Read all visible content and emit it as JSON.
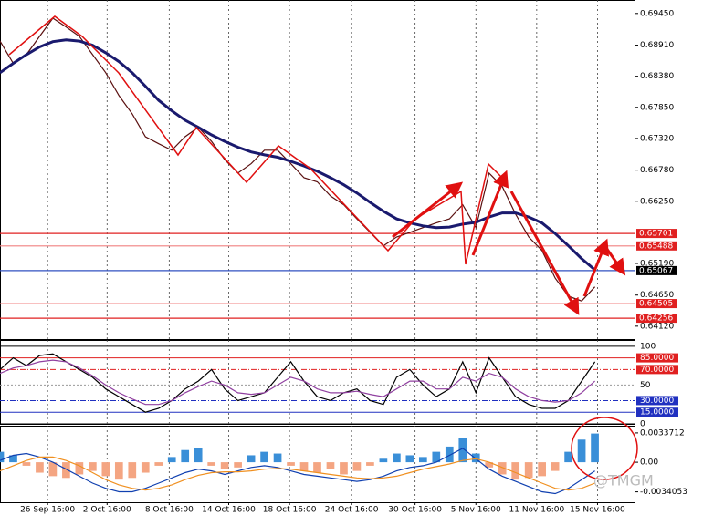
{
  "chart_data": [
    {
      "type": "line",
      "xlim": [
        0,
        48
      ],
      "ylim": [
        0.639,
        0.6968
      ],
      "yticks": [
        {
          "value": 0.6945,
          "label": "0.69450"
        },
        {
          "value": 0.6891,
          "label": "0.68910"
        },
        {
          "value": 0.6838,
          "label": "0.68380"
        },
        {
          "value": 0.6785,
          "label": "0.67850"
        },
        {
          "value": 0.6732,
          "label": "0.67320"
        },
        {
          "value": 0.6678,
          "label": "0.66780"
        },
        {
          "value": 0.6625,
          "label": "0.66250"
        },
        {
          "value": 0.6519,
          "label": "0.65190"
        },
        {
          "value": 0.6465,
          "label": "0.64650"
        },
        {
          "value": 0.6412,
          "label": "0.64120"
        }
      ],
      "levels": [
        {
          "value": 0.65701,
          "color": "#e02020",
          "box": "#e02020"
        },
        {
          "value": 0.65488,
          "color": "#f08080",
          "box": "#e02020"
        },
        {
          "value": 0.65067,
          "color": "#3050c0",
          "box": "#000000"
        },
        {
          "value": 0.64505,
          "color": "#f08080",
          "box": "#e02020"
        },
        {
          "value": 0.64256,
          "color": "#e02020",
          "box": "#e02020"
        }
      ],
      "series": [
        {
          "color": "#5a1010",
          "values": [
            0.6898,
            0.686,
            0.6875,
            0.6906,
            0.6937,
            0.6922,
            0.6906,
            0.6875,
            0.6844,
            0.6805,
            0.6774,
            0.6735,
            0.6723,
            0.6712,
            0.6735,
            0.6751,
            0.6727,
            0.6696,
            0.6673,
            0.6689,
            0.6712,
            0.6712,
            0.6689,
            0.6665,
            0.6658,
            0.6634,
            0.6619,
            0.6595,
            0.6572,
            0.6549,
            0.6564,
            0.6572,
            0.658,
            0.6588,
            0.6595,
            0.6619,
            0.658,
            0.6673,
            0.665,
            0.6603,
            0.6564,
            0.6541,
            0.6494,
            0.6463,
            0.6455,
            0.6479
          ]
        },
        {
          "color": "#1a1a6e",
          "values": [
            0.6844,
            0.686,
            0.6875,
            0.6888,
            0.6897,
            0.69,
            0.6898,
            0.6891,
            0.6878,
            0.6863,
            0.6844,
            0.6821,
            0.6797,
            0.6779,
            0.6763,
            0.6751,
            0.6738,
            0.6727,
            0.6717,
            0.6709,
            0.6704,
            0.67,
            0.6693,
            0.6685,
            0.6676,
            0.6665,
            0.6653,
            0.6639,
            0.6623,
            0.6608,
            0.6595,
            0.6588,
            0.6583,
            0.658,
            0.6581,
            0.6586,
            0.6589,
            0.6598,
            0.6605,
            0.6605,
            0.6598,
            0.6588,
            0.657,
            0.6549,
            0.6527,
            0.6508
          ]
        }
      ]
    },
    {
      "type": "line",
      "xlim": [
        0,
        48
      ],
      "ylim": [
        0,
        108
      ],
      "yticks": [
        100,
        {
          "value": 85,
          "label": "85.0000"
        },
        {
          "value": 70,
          "label": "70.0000"
        },
        50,
        {
          "value": 30,
          "label": "30.0000"
        },
        {
          "value": 15,
          "label": "15.0000"
        },
        0
      ],
      "tick_colors": [
        "#000000",
        "#e02020",
        "#e02020",
        "#999999",
        "#2030c0",
        "#2030c0",
        "#000000"
      ],
      "series": [
        {
          "color": "#000000",
          "values": [
            70,
            85,
            75,
            88,
            90,
            80,
            70,
            60,
            45,
            35,
            25,
            15,
            20,
            30,
            45,
            55,
            70,
            45,
            30,
            35,
            40,
            60,
            80,
            55,
            35,
            30,
            40,
            45,
            30,
            25,
            60,
            70,
            50,
            35,
            45,
            80,
            40,
            85,
            60,
            35,
            25,
            20,
            20,
            30,
            55,
            80
          ]
        },
        {
          "color": "#9040a0",
          "values": [
            65,
            72,
            75,
            80,
            82,
            80,
            72,
            62,
            50,
            40,
            32,
            25,
            25,
            30,
            40,
            48,
            55,
            50,
            40,
            38,
            40,
            50,
            60,
            55,
            45,
            40,
            40,
            42,
            38,
            35,
            45,
            55,
            55,
            45,
            45,
            60,
            55,
            65,
            60,
            45,
            35,
            30,
            28,
            30,
            40,
            55
          ]
        }
      ]
    },
    {
      "type": "bar",
      "xlim": [
        0,
        48
      ],
      "ylim": [
        -0.0046,
        0.0042
      ],
      "yticks": [
        0.0033712,
        {
          "value": 0,
          "label": "0.00"
        },
        -0.0034053
      ],
      "xticks": [
        {
          "value": 3.6,
          "label": "26 Sep 16:00"
        },
        {
          "value": 8.1,
          "label": "2 Oct 16:00"
        },
        {
          "value": 12.8,
          "label": "8 Oct 16:00"
        },
        {
          "value": 17.3,
          "label": "14 Oct 16:00"
        },
        {
          "value": 21.9,
          "label": "18 Oct 16:00"
        },
        {
          "value": 26.6,
          "label": "24 Oct 16:00"
        },
        {
          "value": 31.4,
          "label": "30 Oct 16:00"
        },
        {
          "value": 36.0,
          "label": "5 Nov 16:00"
        },
        {
          "value": 40.6,
          "label": "11 Nov 16:00"
        },
        {
          "value": 45.2,
          "label": "15 Nov 16:00"
        }
      ],
      "up_color": "#3a8fd8",
      "down_color": "#f4a582",
      "values": [
        0.0012,
        0.0008,
        -0.0004,
        -0.0012,
        -0.0016,
        -0.0018,
        -0.0014,
        -0.001,
        -0.0016,
        -0.002,
        -0.0018,
        -0.0012,
        -0.0004,
        0.0006,
        0.0014,
        0.0016,
        -0.0004,
        -0.0008,
        -0.0006,
        0.0008,
        0.0012,
        0.001,
        -0.0004,
        -0.001,
        -0.0012,
        -0.0008,
        -0.0014,
        -0.001,
        -0.0004,
        0.0004,
        0.001,
        0.0008,
        0.0006,
        0.0012,
        0.0018,
        0.0028,
        0.001,
        -0.0006,
        -0.0014,
        -0.002,
        -0.0018,
        -0.0016,
        -0.001,
        0.0012,
        0.0026,
        0.0033
      ],
      "series": [
        {
          "color": "#1040b0",
          "values": [
            0.0002,
            0.0008,
            0.001,
            0.0006,
            0.0,
            -0.0008,
            -0.0016,
            -0.0024,
            -0.003,
            -0.0034,
            -0.0034,
            -0.003,
            -0.0024,
            -0.0018,
            -0.0012,
            -0.0008,
            -0.001,
            -0.0014,
            -0.001,
            -0.0006,
            -0.0004,
            -0.0006,
            -0.001,
            -0.0014,
            -0.0016,
            -0.0018,
            -0.002,
            -0.0022,
            -0.002,
            -0.0016,
            -0.001,
            -0.0006,
            -0.0004,
            0.0,
            0.0008,
            0.0016,
            0.0004,
            -0.0008,
            -0.0016,
            -0.0022,
            -0.0028,
            -0.0034,
            -0.0036,
            -0.003,
            -0.002,
            -0.001
          ]
        },
        {
          "color": "#f09020",
          "values": [
            -0.001,
            -0.0004,
            0.0002,
            0.0006,
            0.0006,
            0.0002,
            -0.0004,
            -0.0012,
            -0.002,
            -0.0026,
            -0.003,
            -0.0032,
            -0.003,
            -0.0026,
            -0.002,
            -0.0015,
            -0.0012,
            -0.0011,
            -0.0011,
            -0.001,
            -0.0008,
            -0.0007,
            -0.0008,
            -0.001,
            -0.0012,
            -0.0014,
            -0.0016,
            -0.0018,
            -0.0019,
            -0.0018,
            -0.0016,
            -0.0012,
            -0.0008,
            -0.0005,
            -0.0002,
            0.0002,
            0.0004,
            0.0,
            -0.0006,
            -0.0012,
            -0.0018,
            -0.0024,
            -0.003,
            -0.0032,
            -0.003,
            -0.0024
          ]
        }
      ]
    }
  ],
  "watermark": "@TMGM"
}
